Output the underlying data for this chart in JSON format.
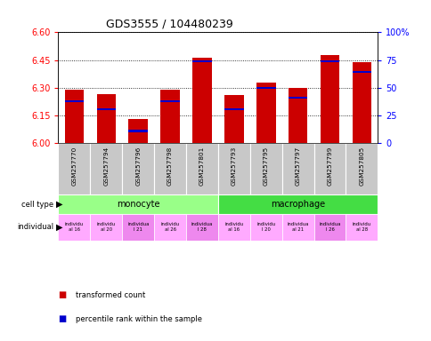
{
  "title": "GDS3555 / 104480239",
  "samples": [
    "GSM257770",
    "GSM257794",
    "GSM257796",
    "GSM257798",
    "GSM257801",
    "GSM257793",
    "GSM257795",
    "GSM257797",
    "GSM257799",
    "GSM257805"
  ],
  "bar_values": [
    6.29,
    6.265,
    6.13,
    6.29,
    6.465,
    6.26,
    6.33,
    6.3,
    6.475,
    6.44
  ],
  "blue_values": [
    6.225,
    6.185,
    6.065,
    6.225,
    6.445,
    6.185,
    6.3,
    6.245,
    6.445,
    6.385
  ],
  "bar_base": 6.0,
  "y_min": 6.0,
  "y_max": 6.6,
  "y_ticks": [
    6.0,
    6.15,
    6.3,
    6.45,
    6.6
  ],
  "y_right_ticks": [
    0,
    25,
    50,
    75,
    100
  ],
  "bar_color": "#cc0000",
  "blue_color": "#0000cc",
  "monocyte_color": "#99ff88",
  "macrophage_color": "#44dd44",
  "indiv_colors": [
    "#ffaaff",
    "#ffaaff",
    "#ee88ee",
    "#ffaaff",
    "#ee88ee",
    "#ffaaff",
    "#ffaaff",
    "#ffaaff",
    "#ee88ee",
    "#ffaaff"
  ],
  "indiv_texts": [
    "individu\nal 16",
    "individu\nal 20",
    "individua\nl 21",
    "individu\nal 26",
    "individua\nl 28",
    "individu\nal 16",
    "individu\nl 20",
    "individua\nal 21",
    "individua\nl 26",
    "individu\nal 28"
  ],
  "legend_red": "transformed count",
  "legend_blue": "percentile rank within the sample"
}
